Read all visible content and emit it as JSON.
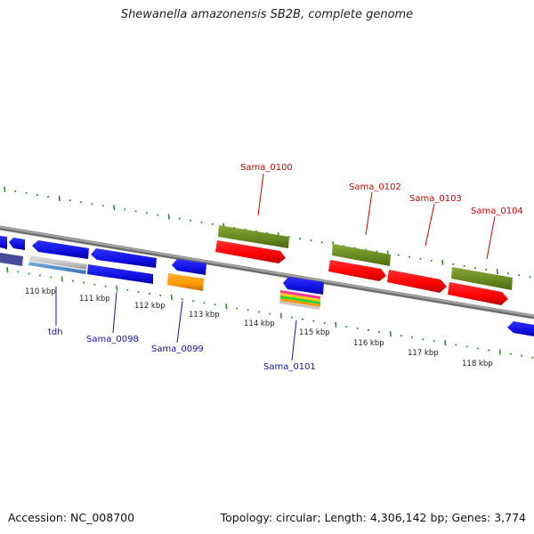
{
  "title": "Shewanella amazonensis SB2B, complete genome",
  "accession_text": "Accession: NC_008700",
  "summary_text": "Topology: circular; Length: 4,306,142 bp; Genes: 3,774",
  "colors": {
    "background": "#ffffff",
    "backbone": "#8c8c8c",
    "tick": "#2e8b2e",
    "cds": "#1010e0",
    "rna": "#ff9900",
    "reverse_label": "#1414a8",
    "forward_label": "#cc0000",
    "olive": "#6b8c23",
    "red": "#ff0000"
  },
  "tick_labels": [
    "110 kbp",
    "111 kbp",
    "112 kbp",
    "113 kbp",
    "114 kbp",
    "115 kbp",
    "116 kbp",
    "117 kbp",
    "118 kbp"
  ],
  "gene_labels_reverse": [
    "tdh",
    "Sama_0098",
    "Sama_0099",
    "Sama_0101"
  ],
  "gene_labels_forward": [
    "Sama_0100",
    "Sama_0102",
    "Sama_0103",
    "Sama_0104"
  ]
}
